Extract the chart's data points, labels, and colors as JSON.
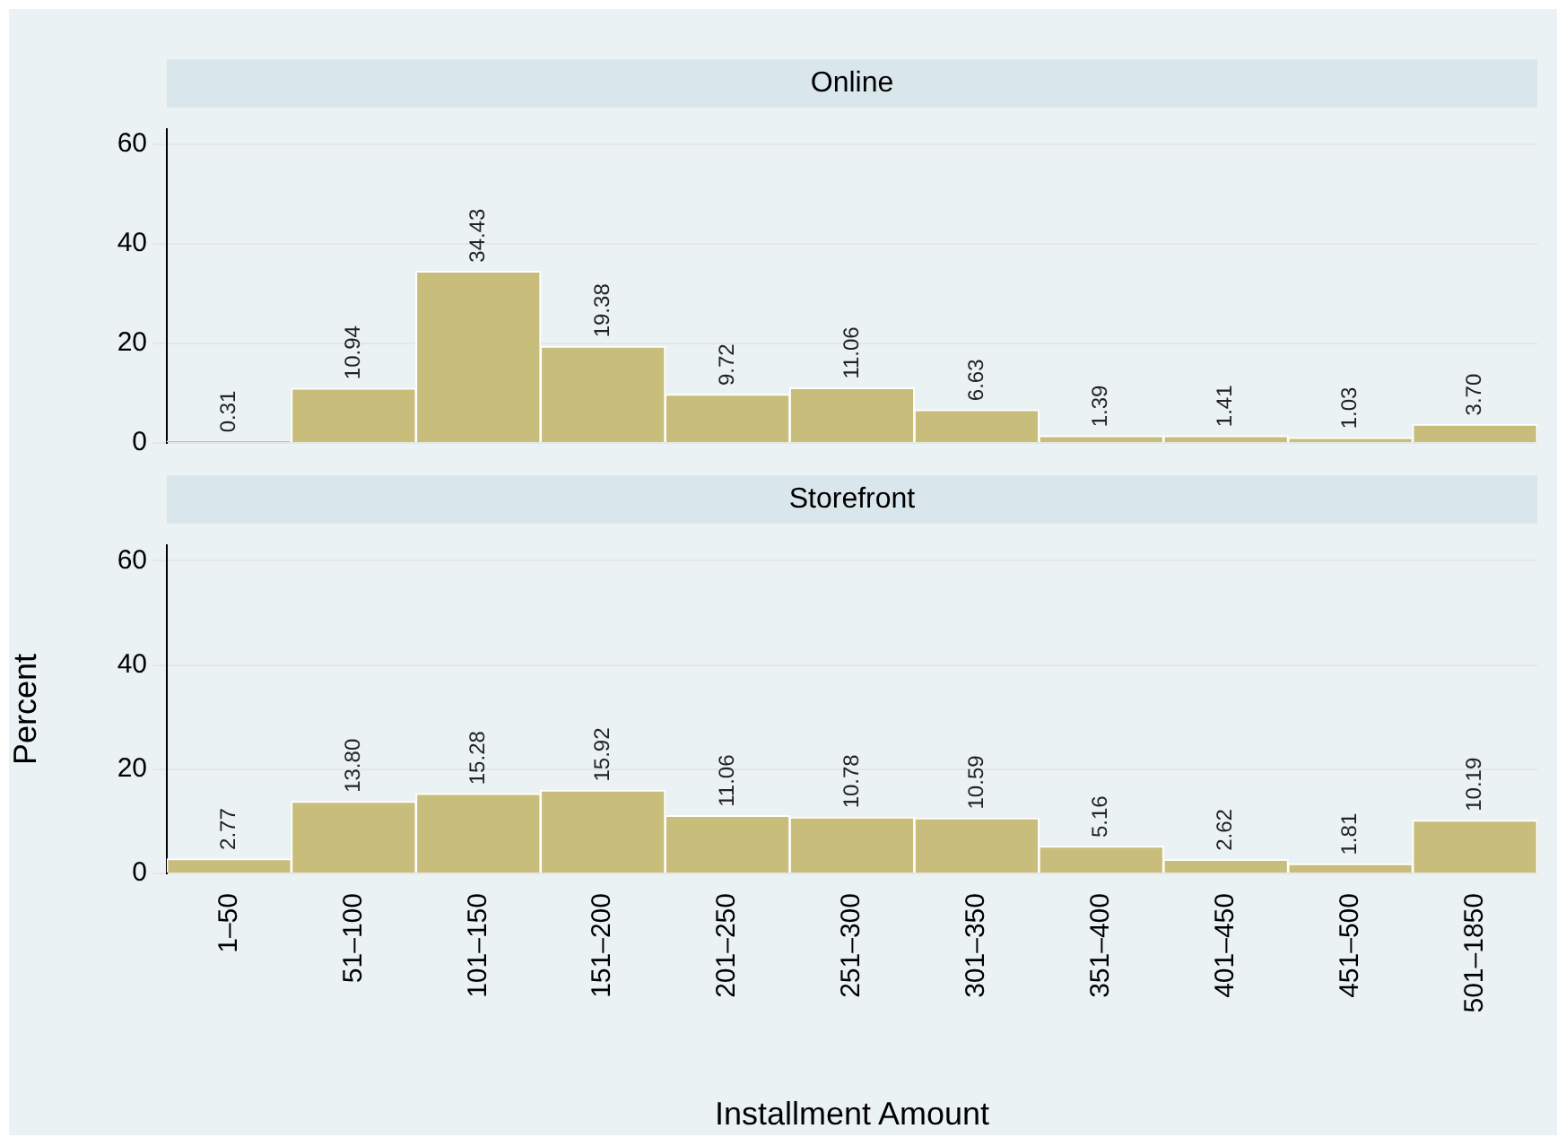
{
  "chart_data": [
    {
      "type": "bar",
      "title": "Online",
      "categories": [
        null,
        null,
        null,
        null,
        null,
        null,
        null,
        null,
        null,
        null,
        null
      ],
      "values": [
        0.31,
        10.94,
        34.43,
        19.38,
        9.72,
        11.06,
        6.63,
        1.39,
        1.41,
        1.03,
        3.7
      ],
      "value_labels": [
        "0.31",
        "10.94",
        "34.43",
        "19.38",
        "9.72",
        "11.06",
        "6.63",
        "1.39",
        "1.41",
        "1.03",
        "3.70"
      ],
      "color": "#c9bd7c",
      "ylim": [
        0,
        63
      ],
      "yticks": [
        0,
        20,
        40,
        60
      ],
      "grid": "y",
      "tick_labels": "y"
    },
    {
      "type": "bar",
      "title": "Storefront",
      "xlabel": "Installment Amount",
      "ylabel": "Percent",
      "categories": [
        "1–50",
        "51–100",
        "101–150",
        "151–200",
        "201–250",
        "251–300",
        "301–350",
        "351–400",
        "401–450",
        "451–500",
        "501–1850"
      ],
      "values": [
        2.77,
        13.8,
        15.28,
        15.92,
        11.06,
        10.78,
        10.59,
        5.16,
        2.62,
        1.81,
        10.19
      ],
      "value_labels": [
        "2.77",
        "13.80",
        "15.28",
        "15.92",
        "11.06",
        "10.78",
        "10.59",
        "5.16",
        "2.62",
        "1.81",
        "10.19"
      ],
      "color": "#c9bd7c",
      "ylim": [
        0,
        63
      ],
      "yticks": [
        0,
        20,
        40,
        60
      ],
      "grid": "y"
    }
  ]
}
